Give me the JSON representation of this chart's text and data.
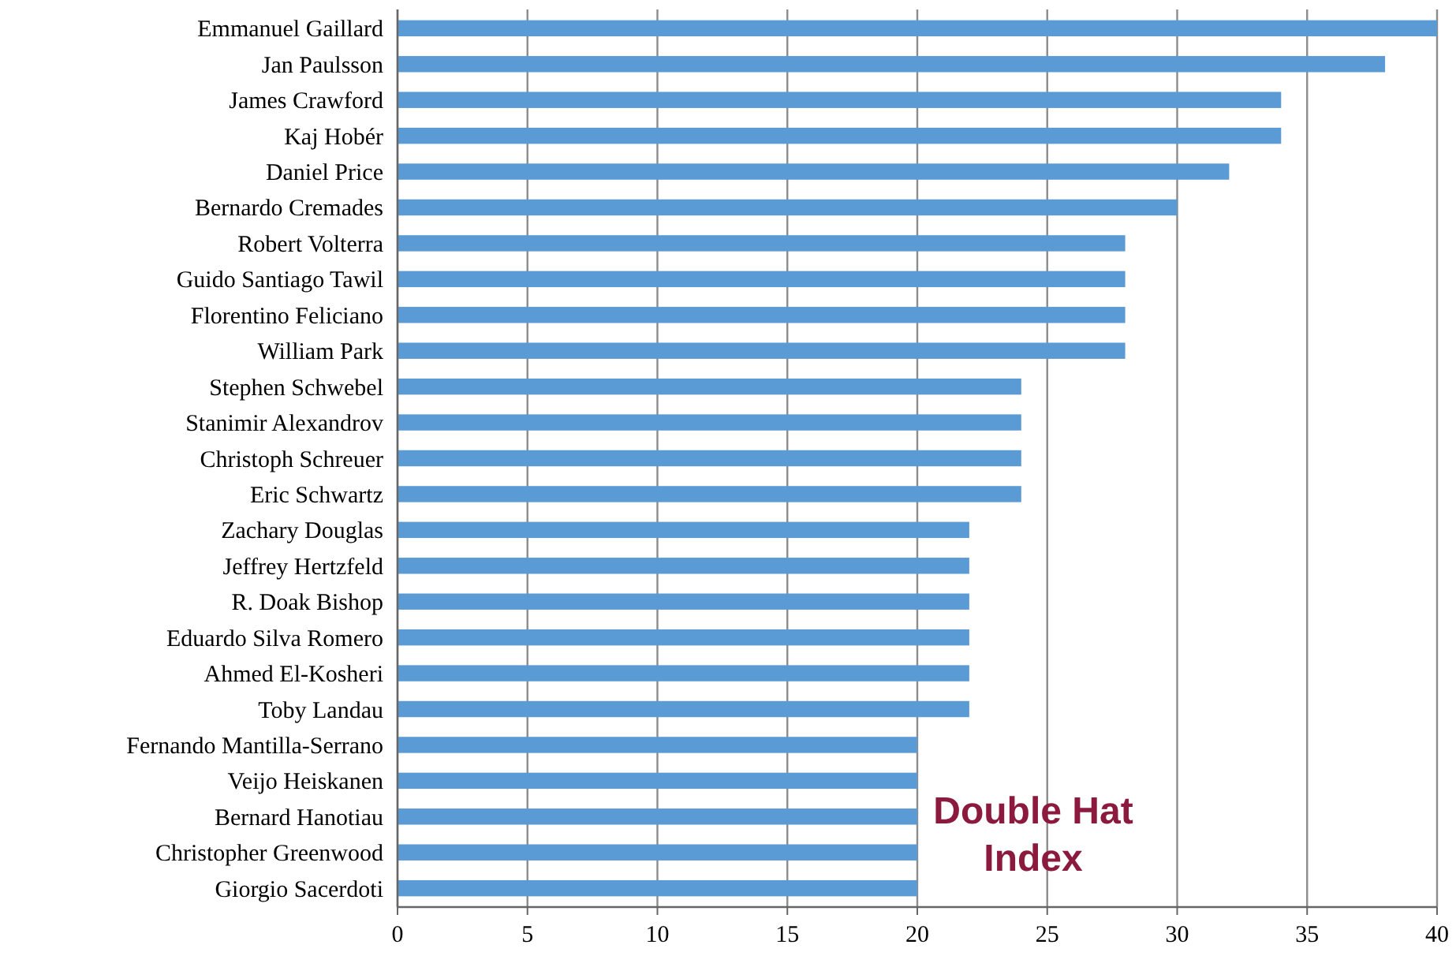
{
  "chart_data": {
    "type": "bar",
    "orientation": "horizontal",
    "categories": [
      "Emmanuel Gaillard",
      "Jan Paulsson",
      "James Crawford",
      "Kaj Hobér",
      "Daniel Price",
      "Bernardo Cremades",
      "Robert Volterra",
      "Guido Santiago Tawil",
      "Florentino Feliciano",
      "William Park",
      "Stephen Schwebel",
      "Stanimir Alexandrov",
      "Christoph Schreuer",
      "Eric Schwartz",
      "Zachary Douglas",
      "Jeffrey Hertzfeld",
      "R. Doak Bishop",
      "Eduardo Silva Romero",
      "Ahmed El-Kosheri",
      "Toby Landau",
      "Fernando Mantilla-Serrano",
      "Veijo Heiskanen",
      "Bernard Hanotiau",
      "Christopher Greenwood",
      "Giorgio Sacerdoti"
    ],
    "values": [
      40,
      38,
      34,
      34,
      32,
      30,
      28,
      28,
      28,
      28,
      24,
      24,
      24,
      24,
      22,
      22,
      22,
      22,
      22,
      22,
      20,
      20,
      20,
      20,
      20
    ],
    "color": "#5b9bd5",
    "xlim": [
      0,
      40
    ],
    "xticks": [
      0,
      5,
      10,
      15,
      20,
      25,
      30,
      35,
      40
    ],
    "grid": "x",
    "annotations": [
      "Double Hat Index"
    ]
  }
}
